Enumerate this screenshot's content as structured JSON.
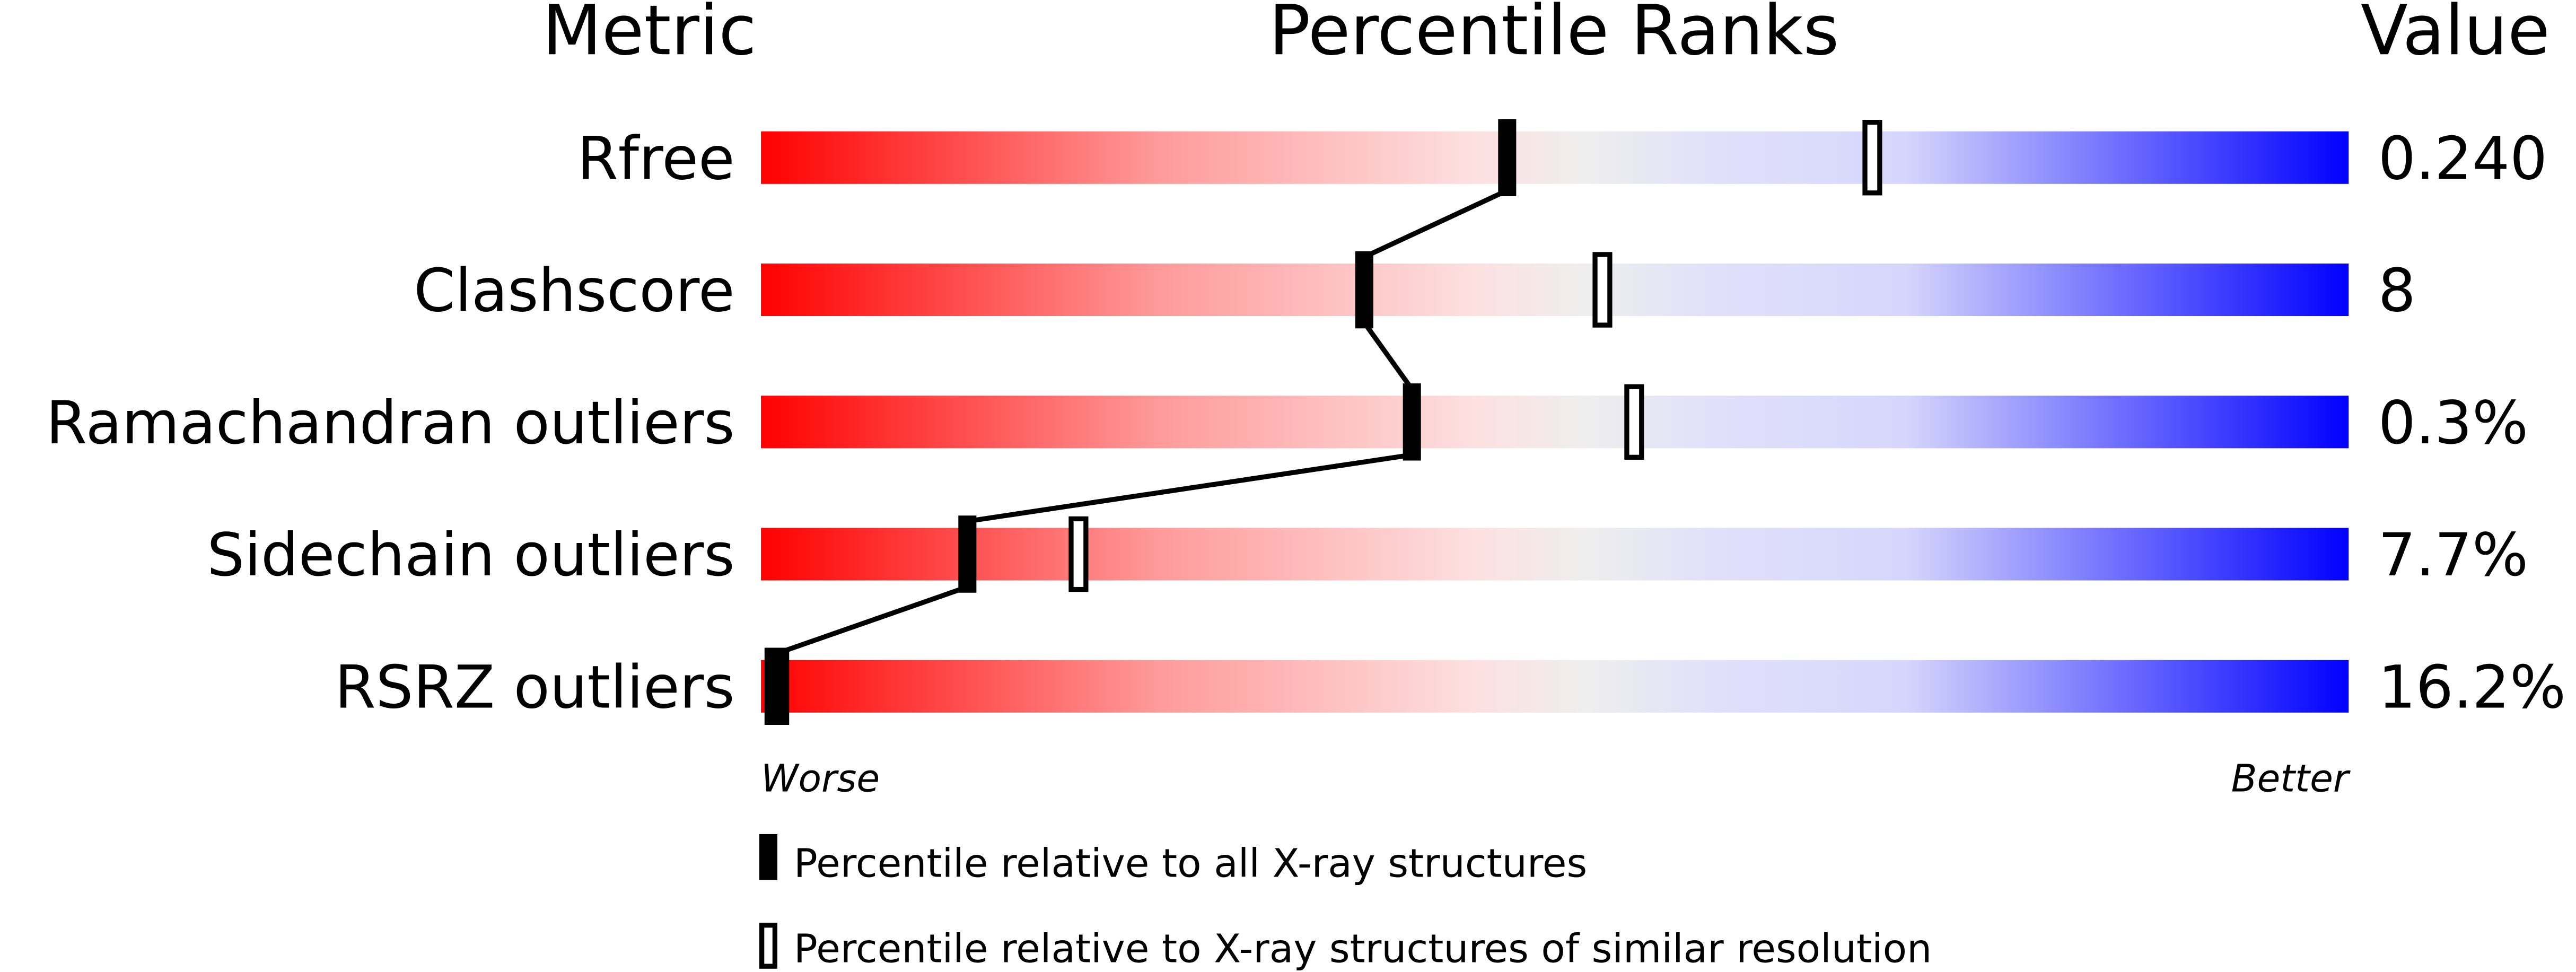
{
  "chart_data": {
    "type": "percentile-slider",
    "headers": {
      "metric": "Metric",
      "ranks": "Percentile Ranks",
      "value": "Value"
    },
    "xlim": [
      0,
      100
    ],
    "axis_labels": {
      "left": "Worse",
      "right": "Better"
    },
    "colors": {
      "worse": "#ff0000",
      "middle": "#eeeeee",
      "better": "#0000ff",
      "marker": "#000000"
    },
    "rows": [
      {
        "metric": "Rfree",
        "value": "0.240",
        "percentile_all": 47,
        "percentile_similar": 70
      },
      {
        "metric": "Clashscore",
        "value": "8",
        "percentile_all": 38,
        "percentile_similar": 53
      },
      {
        "metric": "Ramachandran outliers",
        "value": "0.3%",
        "percentile_all": 41,
        "percentile_similar": 55
      },
      {
        "metric": "Sidechain outliers",
        "value": "7.7%",
        "percentile_all": 13,
        "percentile_similar": 20
      },
      {
        "metric": "RSRZ outliers",
        "value": "16.2%",
        "percentile_all": 1,
        "percentile_similar": null
      }
    ],
    "legend": [
      {
        "marker": "filled",
        "label": "Percentile relative to all X-ray structures"
      },
      {
        "marker": "open",
        "label": "Percentile relative to X-ray structures of similar resolution"
      }
    ]
  }
}
